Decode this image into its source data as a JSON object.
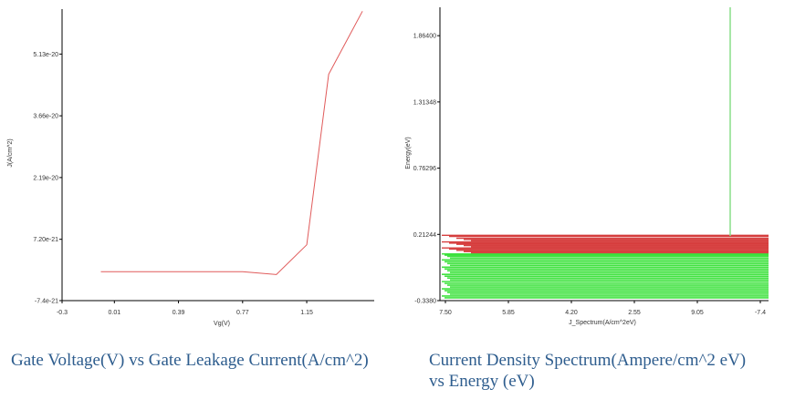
{
  "captions": {
    "left": "Gate Voltage(V) vs Gate Leakage Current(A/cm^2)",
    "right_line1": "Current Density Spectrum(Ampere/cm^2 eV)",
    "right_line2": "vs Energy (eV)"
  },
  "colors": {
    "axis": "#000000",
    "line": "#e05a5a",
    "red_band": "#cc1111",
    "green_band": "#22dd22",
    "vertical_line": "#88dd88",
    "caption": "#2e5d8e"
  },
  "chart_data": [
    {
      "type": "line",
      "title": "",
      "xlabel": "Vg(V)",
      "ylabel": "J(A/cm^2)",
      "xlim": [
        -0.3,
        1.55
      ],
      "ylim": [
        -7.4e-21,
        6.2e-20
      ],
      "x_ticks": [
        -0.3,
        0.01,
        0.39,
        0.77,
        1.15
      ],
      "x_tick_labels": [
        "-0.3",
        "0.01",
        "0.39",
        "0.77",
        "1.15"
      ],
      "y_ticks": [
        -7.4e-21,
        7.2e-21,
        2.19e-20,
        3.66e-20,
        5.13e-20
      ],
      "y_tick_labels": [
        "-7.4e-21",
        "7.20e-21",
        "2.19e-20",
        "3.66e-20",
        "5.13e-20"
      ],
      "series": [
        {
          "name": "J",
          "x": [
            -0.07,
            0.3,
            0.77,
            0.97,
            1.15,
            1.28,
            1.48
          ],
          "y": [
            -5e-22,
            -5e-22,
            -5e-22,
            -1.2e-21,
            5.9e-21,
            4.65e-20,
            6.15e-20
          ]
        }
      ]
    },
    {
      "type": "line",
      "title": "",
      "xlabel": "J_Spectrum(A/cm^2eV)",
      "ylabel": "Energy(eV)",
      "ylim": [
        -0.338,
        2.1
      ],
      "x_tick_labels": [
        "7.50",
        "5.85",
        "4.20",
        "2.55",
        "9.05",
        "-7.4"
      ],
      "y_ticks": [
        -0.338,
        0.21244,
        0.76296,
        1.31348,
        1.864
      ],
      "y_tick_labels": [
        "-0.3380",
        "0.21244",
        "0.76296",
        "1.31348",
        "1.86400"
      ],
      "red_band_energies": [
        0.205,
        0.195,
        0.18,
        0.17,
        0.16,
        0.15,
        0.14,
        0.13,
        0.12,
        0.11,
        0.1,
        0.09,
        0.08,
        0.07,
        0.06
      ],
      "green_band_energies": [
        0.05,
        0.04,
        0.03,
        0.015,
        0.0,
        -0.015,
        -0.03,
        -0.045,
        -0.06,
        -0.075,
        -0.09,
        -0.105,
        -0.12,
        -0.135,
        -0.15,
        -0.165,
        -0.18,
        -0.195,
        -0.21,
        -0.225,
        -0.24,
        -0.255,
        -0.27,
        -0.285,
        -0.3,
        -0.315
      ],
      "vertical_line_tick": "9.05"
    }
  ]
}
